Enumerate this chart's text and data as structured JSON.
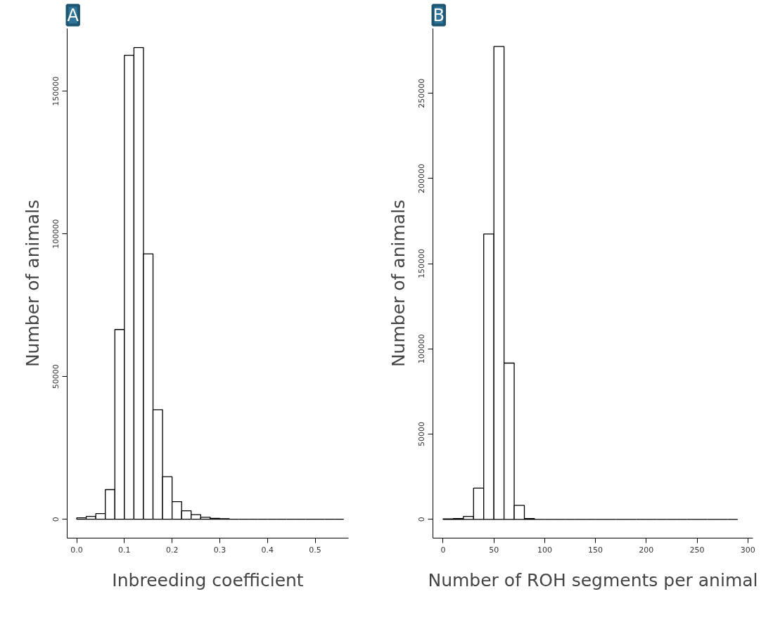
{
  "chart_data": [
    {
      "type": "histogram",
      "title": "A",
      "xlabel": "Inbreeding coefficient",
      "ylabel": "Number of animals",
      "bins": [
        0,
        0.02,
        0.04,
        0.06,
        0.08,
        0.1,
        0.12,
        0.14,
        0.16,
        0.18,
        0.2,
        0.22,
        0.24,
        0.26,
        0.28,
        0.3,
        0.32,
        0.34,
        0.36,
        0.38,
        0.4,
        0.42,
        0.44,
        0.46,
        0.48,
        0.5,
        0.52,
        0.54,
        0.56
      ],
      "values": [
        500,
        1000,
        2000,
        10400,
        66500,
        162600,
        165300,
        93000,
        38400,
        14900,
        6200,
        3000,
        1600,
        700,
        300,
        200,
        0,
        0,
        0,
        0,
        0,
        0,
        0,
        0,
        0,
        0,
        0,
        0
      ],
      "xlim": [
        -0.02,
        0.57
      ],
      "ylim": [
        -6600,
        172000
      ],
      "xticks": [
        {
          "value": 0,
          "label": "0.0"
        },
        0.1,
        0.2,
        0.3,
        0.4,
        0.5
      ],
      "yticks": [
        0,
        50000,
        100000,
        150000
      ]
    },
    {
      "type": "histogram",
      "title": "B",
      "xlabel": "Number of ROH segments per animal",
      "ylabel": "Number of animals",
      "bins": [
        0,
        10,
        20,
        30,
        40,
        50,
        60,
        70,
        80,
        90,
        100,
        110,
        120,
        130,
        140,
        150,
        160,
        170,
        180,
        190,
        200,
        210,
        220,
        230,
        240,
        250,
        260,
        270,
        280,
        290
      ],
      "values": [
        300,
        500,
        1700,
        18300,
        167400,
        277400,
        91700,
        8200,
        500,
        0,
        0,
        0,
        0,
        0,
        0,
        0,
        0,
        0,
        0,
        0,
        0,
        0,
        0,
        0,
        0,
        0,
        0,
        0,
        0
      ],
      "xlim": [
        -10,
        305
      ],
      "ylim": [
        -11000,
        288000
      ],
      "xticks": [
        0,
        50,
        100,
        150,
        200,
        250,
        300
      ],
      "yticks": [
        0,
        50000,
        100000,
        150000,
        200000,
        250000
      ]
    }
  ]
}
